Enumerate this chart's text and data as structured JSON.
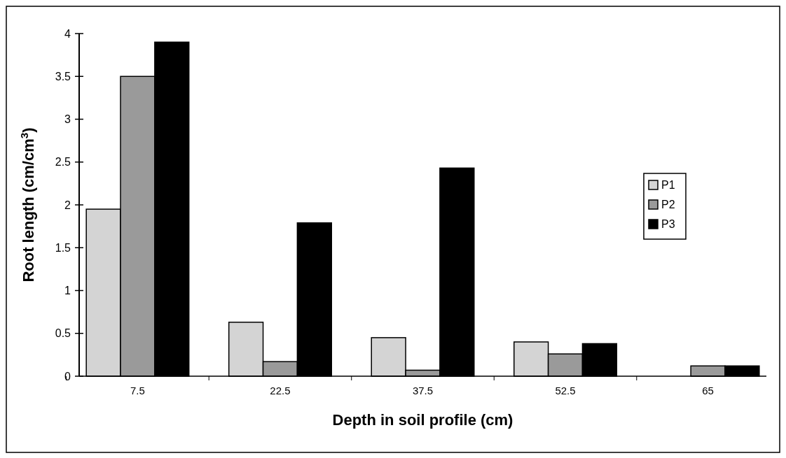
{
  "chart_data": {
    "type": "bar",
    "xlabel": "Depth in soil profile (cm)",
    "ylabel": "Root length (cm/cm$^{3}$)",
    "categories": [
      "7.5",
      "22.5",
      "37.5",
      "52.5",
      "65"
    ],
    "series": [
      {
        "name": "P1",
        "color": "#d4d4d4",
        "values": [
          1.95,
          0.63,
          0.45,
          0.4,
          0
        ]
      },
      {
        "name": "P2",
        "color": "#9a9a9a",
        "values": [
          3.5,
          0.17,
          0.07,
          0.26,
          0.12
        ]
      },
      {
        "name": "P3",
        "color": "#000000",
        "values": [
          3.9,
          1.79,
          2.43,
          0.38,
          0.12
        ]
      }
    ],
    "ylim": [
      0,
      4
    ],
    "yticks": [
      0,
      0.5,
      1,
      1.5,
      2,
      2.5,
      3,
      3.5,
      4
    ],
    "legend": "right"
  }
}
